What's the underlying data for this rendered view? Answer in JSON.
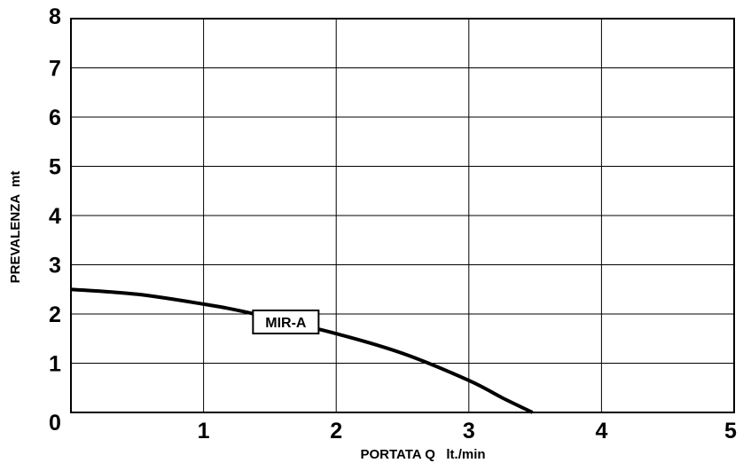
{
  "chart_data": {
    "type": "line",
    "xlabel": "PORTATA Q   lt./min",
    "ylabel": "PREVALENZA  mt",
    "xlim": [
      0,
      5
    ],
    "ylim": [
      0,
      8
    ],
    "x_ticks": [
      "1",
      "2",
      "3",
      "4",
      "5"
    ],
    "y_ticks": [
      "0",
      "1",
      "2",
      "3",
      "4",
      "5",
      "6",
      "7",
      "8"
    ],
    "grid": true,
    "series": [
      {
        "name": "MIR-A",
        "x": [
          0,
          0.5,
          1.0,
          1.3,
          2.0,
          2.5,
          3.0,
          3.25,
          3.48
        ],
        "y": [
          2.5,
          2.4,
          2.2,
          2.05,
          1.6,
          1.2,
          0.65,
          0.3,
          0.0
        ]
      }
    ]
  }
}
